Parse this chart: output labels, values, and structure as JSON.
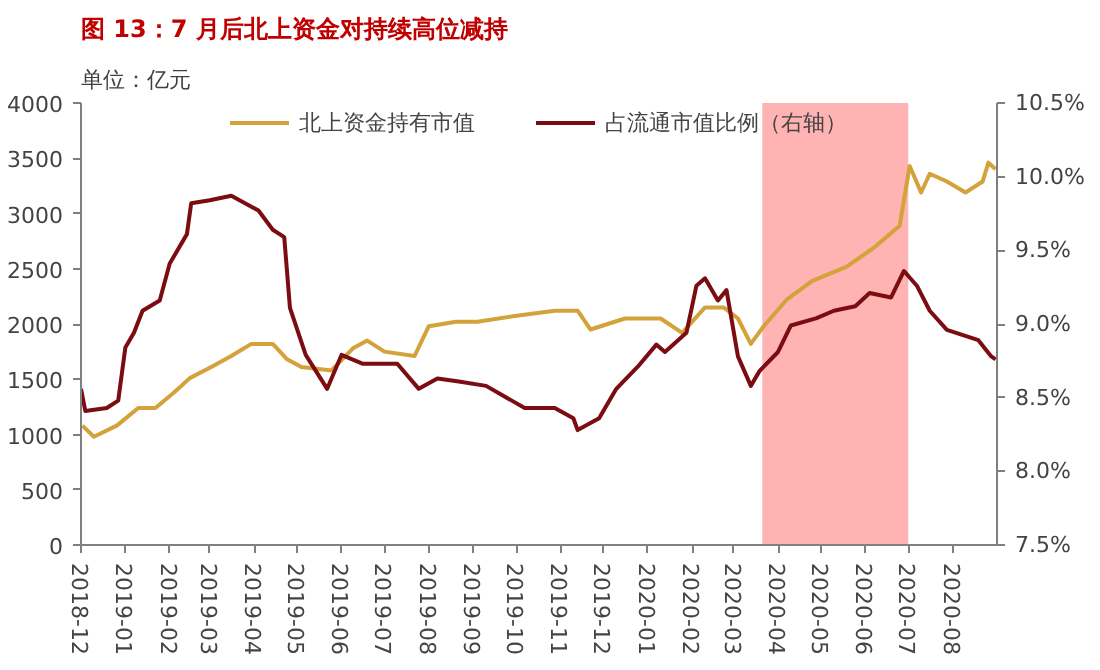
{
  "chart_data": {
    "type": "line",
    "title": "图 13：7 月后北上资金对持续高位减持",
    "ylabel": "单位：亿元",
    "legend": "top",
    "grid": false,
    "xlim": [
      "2018-12",
      "2020-09"
    ],
    "xticks": [
      "2018-12",
      "2019-01",
      "2019-02",
      "2019-03",
      "2019-04",
      "2019-05",
      "2019-06",
      "2019-07",
      "2019-08",
      "2019-09",
      "2019-10",
      "2019-11",
      "2019-12",
      "2020-01",
      "2020-02",
      "2020-03",
      "2020-04",
      "2020-05",
      "2020-06",
      "2020-07",
      "2020-08"
    ],
    "ylim": [
      0,
      4000
    ],
    "yticks": [
      0,
      500,
      1000,
      1500,
      2000,
      2500,
      3000,
      3500,
      4000
    ],
    "y2lim": [
      7.5,
      10.5
    ],
    "y2ticks": [
      {
        "value": 7.5,
        "label": "7.5%"
      },
      {
        "value": 8.0,
        "label": "8.0%"
      },
      {
        "value": 8.5,
        "label": "8.5%"
      },
      {
        "value": 9.0,
        "label": "9.0%"
      },
      {
        "value": 9.5,
        "label": "9.5%"
      },
      {
        "value": 10.0,
        "label": "10.0%"
      },
      {
        "value": 10.5,
        "label": "10.5%"
      }
    ],
    "bands": [
      {
        "axis": "x",
        "from": "2020-03-21",
        "to": "2020-07-01",
        "color": "#ffb3b3"
      }
    ],
    "series": [
      {
        "name": "北上资金持有市值",
        "color": "#d4a23a",
        "x": [
          "2018-12-02",
          "2018-12-10",
          "2018-12-26",
          "2019-01-10",
          "2019-01-22",
          "2019-02-04",
          "2019-02-15",
          "2019-03-02",
          "2019-03-16",
          "2019-03-30",
          "2019-04-14",
          "2019-04-24",
          "2019-05-04",
          "2019-05-25",
          "2019-06-09",
          "2019-06-19",
          "2019-07-01",
          "2019-07-22",
          "2019-08-01",
          "2019-08-20",
          "2019-09-04",
          "2019-10-04",
          "2019-10-28",
          "2019-11-13",
          "2019-11-22",
          "2019-12-16",
          "2020-01-10",
          "2020-01-25",
          "2020-02-10",
          "2020-02-23",
          "2020-03-04",
          "2020-03-13",
          "2020-03-22",
          "2020-04-07",
          "2020-04-25",
          "2020-05-19",
          "2020-06-07",
          "2020-06-25",
          "2020-07-02",
          "2020-07-10",
          "2020-07-16",
          "2020-07-28",
          "2020-08-10",
          "2020-08-22",
          "2020-08-26",
          "2020-08-31"
        ],
        "values": [
          1080,
          980,
          1080,
          1240,
          1240,
          1380,
          1510,
          1610,
          1710,
          1820,
          1820,
          1680,
          1610,
          1580,
          1780,
          1850,
          1750,
          1710,
          1980,
          2020,
          2020,
          2080,
          2120,
          2120,
          1950,
          2050,
          2050,
          1920,
          2150,
          2150,
          2050,
          1820,
          1980,
          2220,
          2390,
          2520,
          2690,
          2890,
          3430,
          3190,
          3360,
          3290,
          3190,
          3290,
          3460,
          3400
        ]
      },
      {
        "name": "占流通市值比例（右轴）",
        "color": "#7b0c12",
        "axis": "y2",
        "x": [
          "2018-12-01",
          "2018-12-04",
          "2018-12-19",
          "2018-12-27",
          "2019-01-01",
          "2019-01-07",
          "2019-01-13",
          "2019-01-25",
          "2019-02-01",
          "2019-02-13",
          "2019-02-16",
          "2019-03-01",
          "2019-03-16",
          "2019-04-04",
          "2019-04-14",
          "2019-04-22",
          "2019-04-26",
          "2019-05-07",
          "2019-05-22",
          "2019-06-01",
          "2019-06-16",
          "2019-07-10",
          "2019-07-25",
          "2019-08-07",
          "2019-08-22",
          "2019-09-10",
          "2019-09-28",
          "2019-10-07",
          "2019-10-28",
          "2019-11-10",
          "2019-11-13",
          "2019-11-28",
          "2019-12-10",
          "2019-12-25",
          "2020-01-07",
          "2020-01-13",
          "2020-01-28",
          "2020-02-04",
          "2020-02-10",
          "2020-02-19",
          "2020-02-25",
          "2020-03-04",
          "2020-03-13",
          "2020-03-19",
          "2020-04-01",
          "2020-04-10",
          "2020-04-28",
          "2020-05-10",
          "2020-05-25",
          "2020-06-04",
          "2020-06-19",
          "2020-06-28",
          "2020-07-07",
          "2020-07-16",
          "2020-07-28",
          "2020-08-19",
          "2020-08-28",
          "2020-08-31"
        ],
        "values": [
          8.56,
          8.41,
          8.43,
          8.48,
          8.84,
          8.94,
          9.09,
          9.16,
          9.41,
          9.61,
          9.82,
          9.84,
          9.87,
          9.77,
          9.64,
          9.59,
          9.11,
          8.79,
          8.56,
          8.79,
          8.73,
          8.73,
          8.56,
          8.63,
          8.61,
          8.58,
          8.48,
          8.43,
          8.43,
          8.36,
          8.28,
          8.36,
          8.56,
          8.71,
          8.86,
          8.81,
          8.94,
          9.26,
          9.31,
          9.16,
          9.23,
          8.78,
          8.58,
          8.68,
          8.81,
          8.99,
          9.04,
          9.09,
          9.12,
          9.21,
          9.18,
          9.36,
          9.26,
          9.09,
          8.96,
          8.89,
          8.78,
          8.76
        ]
      }
    ]
  }
}
